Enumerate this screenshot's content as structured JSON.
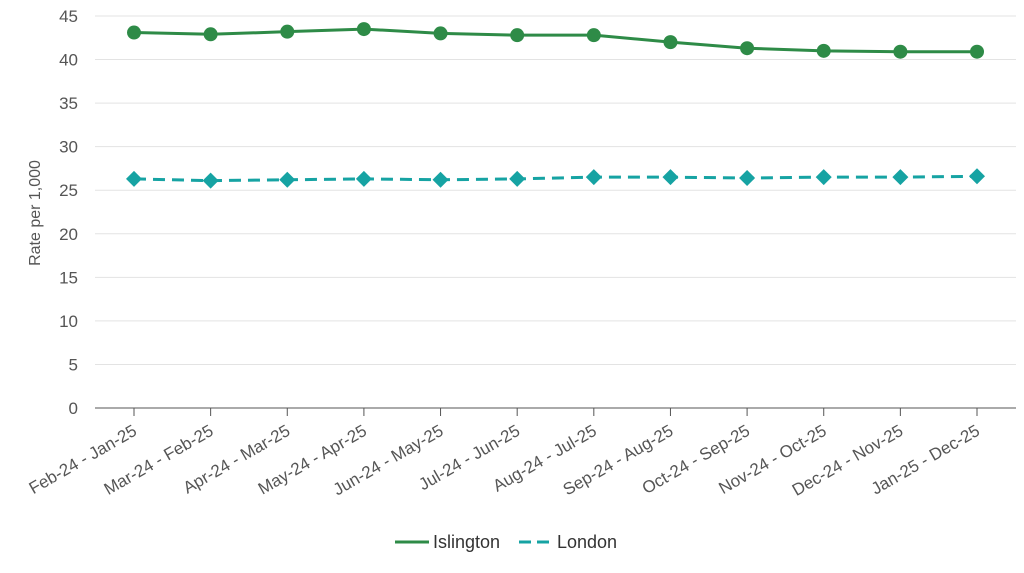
{
  "chart_data": {
    "type": "line",
    "title": "",
    "xlabel": "",
    "ylabel": "Rate per 1,000",
    "ylim": [
      0,
      45
    ],
    "yticks": [
      0,
      5,
      10,
      15,
      20,
      25,
      30,
      35,
      40,
      45
    ],
    "grid": true,
    "legend_position": "bottom-center",
    "categories": [
      "Feb-24 - Jan-25",
      "Mar-24 - Feb-25",
      "Apr-24 - Mar-25",
      "May-24 - Apr-25",
      "Jun-24 - May-25",
      "Jul-24 - Jun-25",
      "Aug-24 - Jul-25",
      "Sep-24 - Aug-25",
      "Oct-24 - Sep-25",
      "Nov-24 - Oct-25",
      "Dec-24 - Nov-25",
      "Jan-25 - Dec-25"
    ],
    "series": [
      {
        "name": "Islington",
        "color": "#2e8b47",
        "line_style": "solid",
        "marker": "circle",
        "values": [
          43.1,
          42.9,
          43.2,
          43.5,
          43.0,
          42.8,
          42.8,
          42.0,
          41.3,
          41.0,
          40.9,
          40.9
        ]
      },
      {
        "name": "London",
        "color": "#16a3a3",
        "line_style": "dashed",
        "marker": "diamond",
        "values": [
          26.3,
          26.1,
          26.2,
          26.3,
          26.2,
          26.3,
          26.5,
          26.5,
          26.4,
          26.5,
          26.5,
          26.6
        ]
      }
    ]
  }
}
